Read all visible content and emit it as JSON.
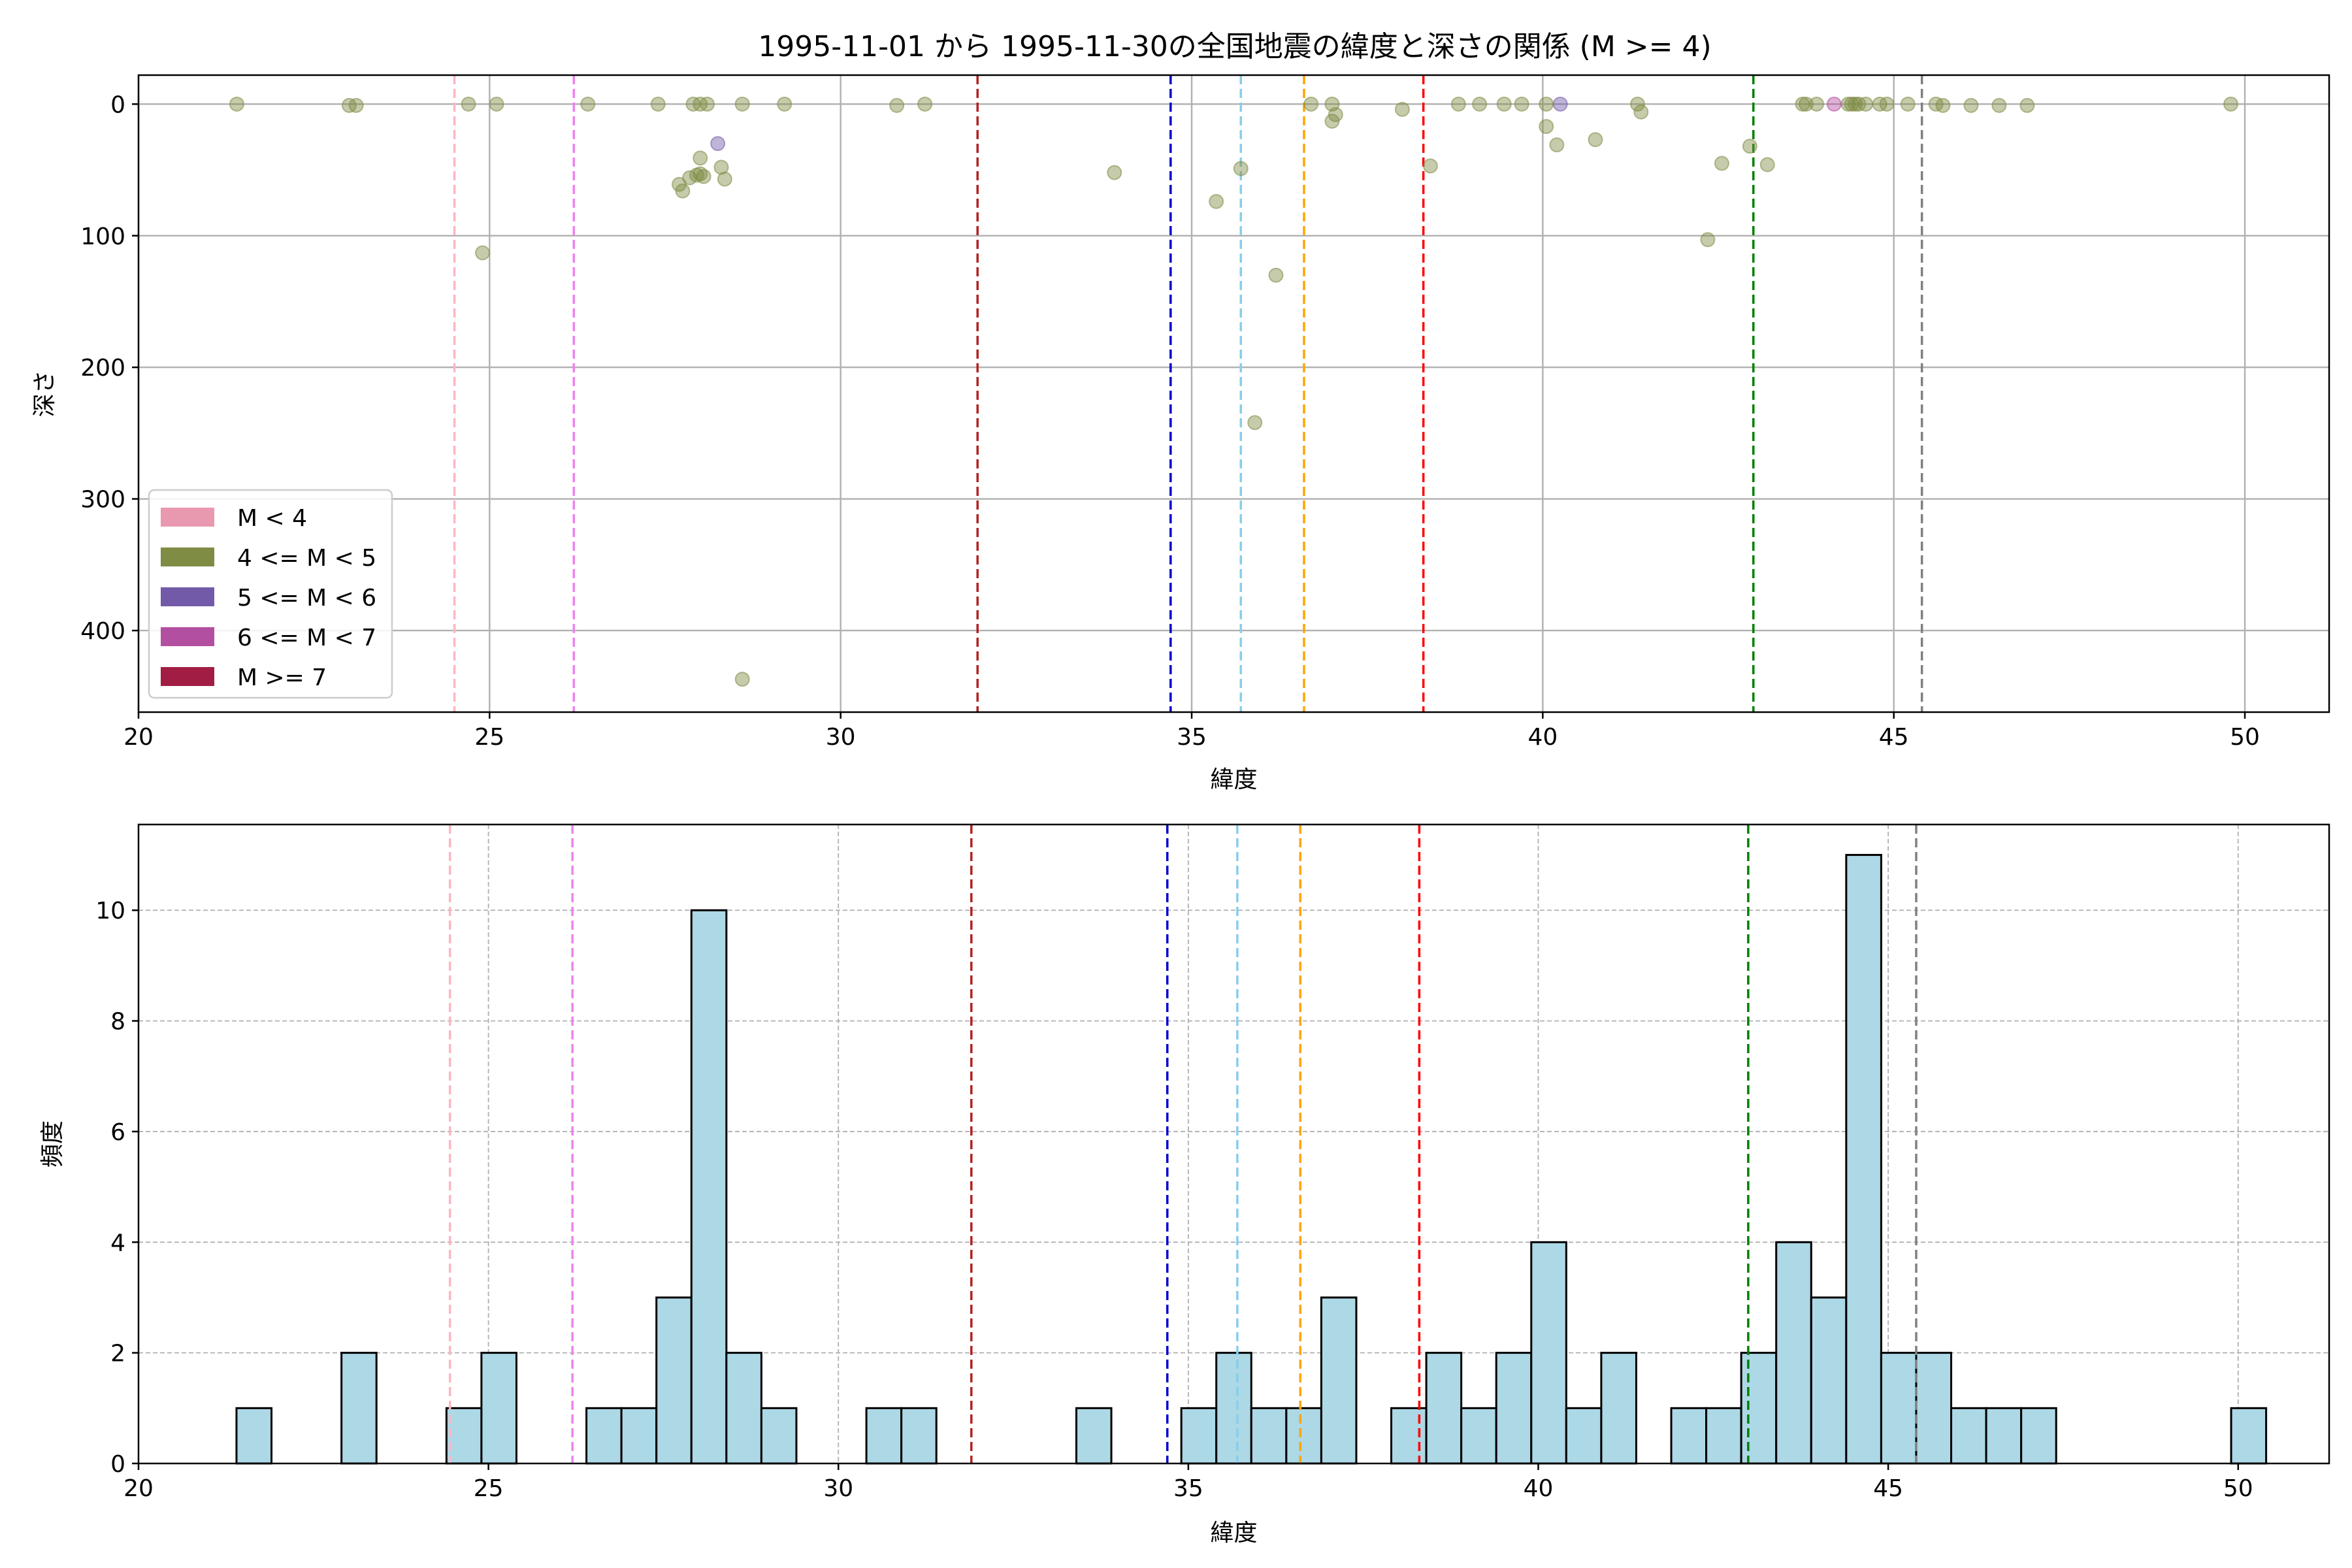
{
  "title": "1995-11-01 から 1995-11-30の全国地震の緯度と深さの関係 (M >= 4)",
  "colors": {
    "vlines": [
      "#ffb6c1",
      "#ee82ee",
      "#b22222",
      "#0000cd",
      "#87ceeb",
      "#ffa500",
      "#ff0000",
      "#008000",
      "#808080"
    ],
    "bar_fill": "#add8e6",
    "bar_edge": "#000000",
    "grid": "#b0b0b0"
  },
  "chart_data": [
    {
      "type": "scatter",
      "xlabel": "緯度",
      "ylabel": "深さ",
      "xlim": [
        20,
        51.2
      ],
      "ylim": [
        462,
        -22
      ],
      "y_inverted": true,
      "xticks": [
        20,
        25,
        30,
        35,
        40,
        45,
        50
      ],
      "yticks": [
        0,
        100,
        200,
        300,
        400
      ],
      "grid": true,
      "vlines": [
        24.5,
        26.2,
        31.95,
        34.7,
        35.7,
        36.6,
        38.3,
        43.0,
        45.4
      ],
      "legend": {
        "position": "lower-left",
        "entries": [
          {
            "label": "M < 4",
            "color": "#e899b0"
          },
          {
            "label": "4 <= M < 5",
            "color": "#7e8c44"
          },
          {
            "label": "5 <= M < 6",
            "color": "#725aa8"
          },
          {
            "label": "6 <= M < 7",
            "color": "#b34fa0"
          },
          {
            "label": "M >= 7",
            "color": "#a21d44"
          }
        ]
      },
      "series": [
        {
          "name": "4 <= M < 5",
          "color": "#7e8c44",
          "points": [
            [
              21.4,
              0
            ],
            [
              23.0,
              1
            ],
            [
              23.1,
              1
            ],
            [
              24.7,
              0
            ],
            [
              24.9,
              113
            ],
            [
              25.1,
              0
            ],
            [
              26.4,
              0
            ],
            [
              27.4,
              0
            ],
            [
              27.7,
              61
            ],
            [
              27.75,
              66
            ],
            [
              27.85,
              56
            ],
            [
              27.9,
              0
            ],
            [
              27.95,
              54
            ],
            [
              28.0,
              0
            ],
            [
              28.0,
              53
            ],
            [
              28.05,
              55
            ],
            [
              28.1,
              0
            ],
            [
              28.0,
              41
            ],
            [
              28.3,
              48
            ],
            [
              28.35,
              57
            ],
            [
              28.6,
              0
            ],
            [
              28.6,
              437
            ],
            [
              29.2,
              0
            ],
            [
              30.8,
              1
            ],
            [
              31.2,
              0
            ],
            [
              33.9,
              52
            ],
            [
              35.35,
              74
            ],
            [
              35.7,
              49
            ],
            [
              35.9,
              242
            ],
            [
              36.2,
              130
            ],
            [
              36.7,
              0
            ],
            [
              37.0,
              13
            ],
            [
              37.0,
              0
            ],
            [
              37.05,
              8
            ],
            [
              38.0,
              4
            ],
            [
              38.4,
              47
            ],
            [
              38.8,
              0
            ],
            [
              39.1,
              0
            ],
            [
              39.45,
              0
            ],
            [
              39.7,
              0
            ],
            [
              40.05,
              0
            ],
            [
              40.05,
              17
            ],
            [
              40.2,
              31
            ],
            [
              40.75,
              27
            ],
            [
              41.35,
              0
            ],
            [
              41.4,
              6
            ],
            [
              42.35,
              103
            ],
            [
              42.55,
              45
            ],
            [
              42.95,
              32
            ],
            [
              43.2,
              46
            ],
            [
              43.7,
              0
            ],
            [
              43.75,
              0
            ],
            [
              43.9,
              0
            ],
            [
              44.35,
              0
            ],
            [
              44.4,
              0
            ],
            [
              44.45,
              0
            ],
            [
              44.5,
              0
            ],
            [
              44.6,
              0
            ],
            [
              44.8,
              0
            ],
            [
              44.9,
              0
            ],
            [
              45.2,
              0
            ],
            [
              45.6,
              0
            ],
            [
              45.7,
              1
            ],
            [
              46.1,
              1
            ],
            [
              46.5,
              1
            ],
            [
              46.9,
              1
            ],
            [
              49.8,
              0
            ]
          ]
        },
        {
          "name": "5 <= M < 6",
          "color": "#725aa8",
          "points": [
            [
              28.25,
              30
            ],
            [
              40.25,
              0
            ]
          ]
        },
        {
          "name": "6 <= M < 7",
          "color": "#b34fa0",
          "points": [
            [
              44.15,
              0
            ]
          ]
        }
      ]
    },
    {
      "type": "bar",
      "xlabel": "緯度",
      "ylabel": "頻度",
      "xlim": [
        20,
        51.3
      ],
      "ylim": [
        0,
        11.55
      ],
      "xticks": [
        20,
        25,
        30,
        35,
        40,
        45,
        50
      ],
      "yticks": [
        0,
        2,
        4,
        6,
        8,
        10
      ],
      "grid": true,
      "bin_start": 21.4,
      "bin_width": 0.5,
      "counts": [
        1,
        0,
        0,
        2,
        0,
        0,
        1,
        2,
        0,
        0,
        1,
        1,
        3,
        10,
        2,
        1,
        0,
        0,
        1,
        1,
        0,
        0,
        0,
        0,
        1,
        0,
        0,
        1,
        2,
        1,
        1,
        3,
        0,
        1,
        2,
        1,
        2,
        4,
        1,
        2,
        0,
        1,
        1,
        2,
        4,
        3,
        11,
        2,
        2,
        1,
        1,
        1,
        0,
        0,
        0,
        0,
        0,
        1
      ],
      "vlines": [
        24.45,
        26.2,
        31.9,
        34.7,
        35.7,
        36.6,
        38.3,
        43.0,
        45.4
      ]
    }
  ]
}
